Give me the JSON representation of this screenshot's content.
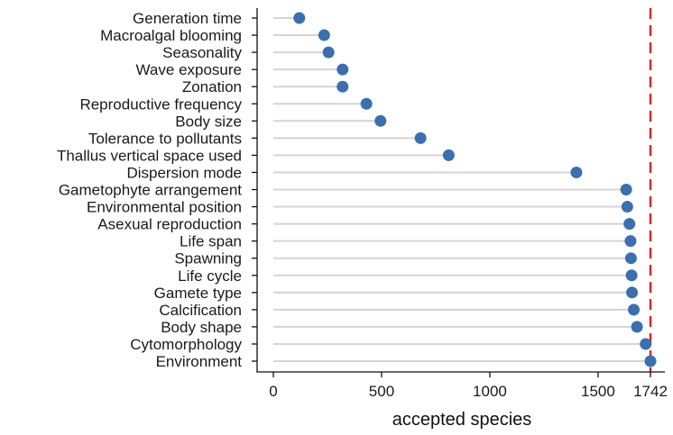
{
  "chart_data": {
    "type": "lollipop",
    "categories": [
      "Generation time",
      "Macroalgal blooming",
      "Seasonality",
      "Wave exposure",
      "Zonation",
      "Reproductive frequency",
      "Body size",
      "Tolerance to pollutants",
      "Thallus vertical space used",
      "Dispersion mode",
      "Gametophyte arrangement",
      "Environmental position",
      "Asexual reproduction",
      "Life span",
      "Spawning",
      "Life cycle",
      "Gamete type",
      "Calcification",
      "Body shape",
      "Cytomorphology",
      "Environment"
    ],
    "values": [
      120,
      235,
      255,
      320,
      320,
      430,
      495,
      680,
      810,
      1400,
      1630,
      1635,
      1645,
      1650,
      1652,
      1655,
      1657,
      1665,
      1680,
      1720,
      1742
    ],
    "xlabel": "accepted species",
    "ylabel": "",
    "xlim": [
      0,
      1742
    ],
    "xticks": [
      0,
      500,
      1000,
      1500,
      1742
    ],
    "reference_line": {
      "value": 1742,
      "style": "dashed",
      "color": "#e8201e"
    },
    "colors": {
      "point": "#3a6fb0",
      "stem": "#d4d4d4",
      "axis": "#111111"
    },
    "grid": false,
    "legend": "none"
  }
}
